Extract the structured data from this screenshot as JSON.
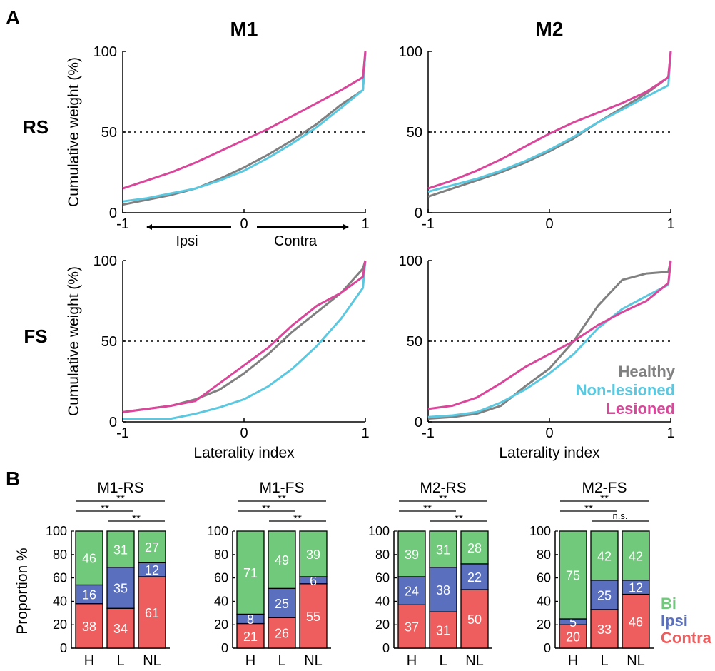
{
  "panels": {
    "A": "A",
    "B": "B"
  },
  "colors": {
    "healthy": "#808080",
    "non_lesioned": "#5bc8e0",
    "lesioned": "#d9479b",
    "bi": "#71c97c",
    "ipsi": "#5a70be",
    "contra": "#ef5e5e"
  },
  "chart_data": [
    {
      "type": "line",
      "title": "M1",
      "row_label": "RS",
      "ylabel": "Cumulative weight (%)",
      "xlabel": "",
      "xlim": [
        -1,
        1
      ],
      "ylim": [
        0,
        100
      ],
      "xticks": [
        "-1",
        "0",
        "1"
      ],
      "yticks": [
        "0",
        "50",
        "100"
      ],
      "reference_line": 50,
      "direction_labels": {
        "left": "Ipsi",
        "right": "Contra"
      },
      "x": [
        -1,
        -0.8,
        -0.6,
        -0.4,
        -0.2,
        0,
        0.2,
        0.4,
        0.6,
        0.8,
        0.98,
        1
      ],
      "series": [
        {
          "name": "Healthy",
          "values": [
            5,
            8,
            11,
            15,
            21,
            28,
            36,
            45,
            55,
            67,
            76,
            100
          ]
        },
        {
          "name": "Non-lesioned",
          "values": [
            7,
            9,
            12,
            15,
            20,
            26,
            34,
            43,
            53,
            65,
            76,
            100
          ]
        },
        {
          "name": "Lesioned",
          "values": [
            15,
            20,
            25,
            31,
            38,
            45,
            52,
            60,
            68,
            76,
            84,
            100
          ]
        }
      ]
    },
    {
      "type": "line",
      "title": "M2",
      "row_label": "",
      "ylabel": "",
      "xlabel": "",
      "xlim": [
        -1,
        1
      ],
      "ylim": [
        0,
        100
      ],
      "xticks": [
        "-1",
        "0",
        "1"
      ],
      "yticks": [
        "0",
        "50",
        "100"
      ],
      "reference_line": 50,
      "x": [
        -1,
        -0.8,
        -0.6,
        -0.4,
        -0.2,
        0,
        0.2,
        0.4,
        0.6,
        0.8,
        0.98,
        1
      ],
      "series": [
        {
          "name": "Healthy",
          "values": [
            10,
            15,
            20,
            25,
            31,
            38,
            46,
            56,
            65,
            74,
            84,
            100
          ]
        },
        {
          "name": "Non-lesioned",
          "values": [
            13,
            17,
            21,
            26,
            32,
            39,
            47,
            56,
            64,
            72,
            79,
            100
          ]
        },
        {
          "name": "Lesioned",
          "values": [
            15,
            20,
            26,
            33,
            41,
            49,
            56,
            62,
            68,
            75,
            84,
            100
          ]
        }
      ]
    },
    {
      "type": "line",
      "title": "",
      "row_label": "FS",
      "ylabel": "Cumulative weight (%)",
      "xlabel": "Laterality index",
      "xlim": [
        -1,
        1
      ],
      "ylim": [
        0,
        100
      ],
      "xticks": [
        "-1",
        "0",
        "1"
      ],
      "yticks": [
        "0",
        "50",
        "100"
      ],
      "reference_line": 50,
      "x": [
        -1,
        -0.8,
        -0.6,
        -0.4,
        -0.2,
        0,
        0.2,
        0.4,
        0.6,
        0.8,
        0.98,
        1
      ],
      "series": [
        {
          "name": "Healthy",
          "values": [
            6,
            8,
            10,
            14,
            20,
            30,
            42,
            56,
            68,
            80,
            95,
            100
          ]
        },
        {
          "name": "Non-lesioned",
          "values": [
            2,
            2,
            2,
            5,
            9,
            14,
            22,
            33,
            47,
            64,
            83,
            100
          ]
        },
        {
          "name": "Lesioned",
          "values": [
            6,
            8,
            10,
            13,
            24,
            35,
            46,
            60,
            72,
            80,
            90,
            100
          ]
        }
      ]
    },
    {
      "type": "line",
      "title": "",
      "row_label": "",
      "ylabel": "",
      "xlabel": "Laterality index",
      "xlim": [
        -1,
        1
      ],
      "ylim": [
        0,
        100
      ],
      "xticks": [
        "-1",
        "0",
        "1"
      ],
      "yticks": [
        "0",
        "50",
        "100"
      ],
      "reference_line": 50,
      "legend": {
        "position": "bottom-right",
        "entries": [
          "Healthy",
          "Non-lesioned",
          "Lesioned"
        ]
      },
      "x": [
        -1,
        -0.8,
        -0.6,
        -0.4,
        -0.2,
        0,
        0.2,
        0.4,
        0.6,
        0.8,
        0.98,
        1
      ],
      "series": [
        {
          "name": "Healthy",
          "values": [
            2,
            3,
            5,
            10,
            22,
            33,
            50,
            72,
            88,
            92,
            93,
            100
          ]
        },
        {
          "name": "Non-lesioned",
          "values": [
            3,
            4,
            6,
            12,
            20,
            30,
            42,
            58,
            70,
            78,
            85,
            100
          ]
        },
        {
          "name": "Lesioned",
          "values": [
            8,
            10,
            15,
            24,
            34,
            42,
            50,
            60,
            68,
            75,
            86,
            100
          ]
        }
      ]
    },
    {
      "type": "bar",
      "stacked": true,
      "title": "M1-RS",
      "ylabel": "Proportion %",
      "ylim": [
        0,
        100
      ],
      "yticks": [
        "0",
        "20",
        "40",
        "60",
        "80",
        "100"
      ],
      "categories": [
        "H",
        "L",
        "NL"
      ],
      "series": [
        {
          "name": "Contra",
          "values": [
            38,
            34,
            61
          ]
        },
        {
          "name": "Ipsi",
          "values": [
            16,
            35,
            12
          ]
        },
        {
          "name": "Bi",
          "values": [
            46,
            31,
            27
          ]
        }
      ],
      "significance": [
        {
          "from": "H",
          "to": "L",
          "label": "**"
        },
        {
          "from": "L",
          "to": "NL",
          "label": "**"
        },
        {
          "from": "H",
          "to": "NL",
          "label": "**"
        }
      ]
    },
    {
      "type": "bar",
      "stacked": true,
      "title": "M1-FS",
      "ylabel": "",
      "ylim": [
        0,
        100
      ],
      "yticks": [
        "0",
        "20",
        "40",
        "60",
        "80",
        "100"
      ],
      "categories": [
        "H",
        "L",
        "NL"
      ],
      "series": [
        {
          "name": "Contra",
          "values": [
            21,
            26,
            55
          ]
        },
        {
          "name": "Ipsi",
          "values": [
            8,
            25,
            6
          ]
        },
        {
          "name": "Bi",
          "values": [
            71,
            49,
            39
          ]
        }
      ],
      "significance": [
        {
          "from": "H",
          "to": "L",
          "label": "**"
        },
        {
          "from": "L",
          "to": "NL",
          "label": "**"
        },
        {
          "from": "H",
          "to": "NL",
          "label": "**"
        }
      ]
    },
    {
      "type": "bar",
      "stacked": true,
      "title": "M2-RS",
      "ylabel": "",
      "ylim": [
        0,
        100
      ],
      "yticks": [
        "0",
        "20",
        "40",
        "60",
        "80",
        "100"
      ],
      "categories": [
        "H",
        "L",
        "NL"
      ],
      "series": [
        {
          "name": "Contra",
          "values": [
            37,
            31,
            50
          ]
        },
        {
          "name": "Ipsi",
          "values": [
            24,
            38,
            22
          ]
        },
        {
          "name": "Bi",
          "values": [
            39,
            31,
            28
          ]
        }
      ],
      "significance": [
        {
          "from": "H",
          "to": "L",
          "label": "**"
        },
        {
          "from": "L",
          "to": "NL",
          "label": "**"
        },
        {
          "from": "H",
          "to": "NL",
          "label": "**"
        }
      ]
    },
    {
      "type": "bar",
      "stacked": true,
      "title": "M2-FS",
      "ylabel": "",
      "ylim": [
        0,
        100
      ],
      "yticks": [
        "0",
        "20",
        "40",
        "60",
        "80",
        "100"
      ],
      "categories": [
        "H",
        "L",
        "NL"
      ],
      "series": [
        {
          "name": "Contra",
          "values": [
            20,
            33,
            46
          ]
        },
        {
          "name": "Ipsi",
          "values": [
            5,
            25,
            12
          ]
        },
        {
          "name": "Bi",
          "values": [
            75,
            42,
            42
          ]
        }
      ],
      "significance": [
        {
          "from": "H",
          "to": "L",
          "label": "**"
        },
        {
          "from": "L",
          "to": "NL",
          "label": "n.s."
        },
        {
          "from": "H",
          "to": "NL",
          "label": "**"
        }
      ],
      "legend": {
        "position": "right",
        "entries": [
          "Bi",
          "Ipsi",
          "Contra"
        ]
      }
    }
  ]
}
